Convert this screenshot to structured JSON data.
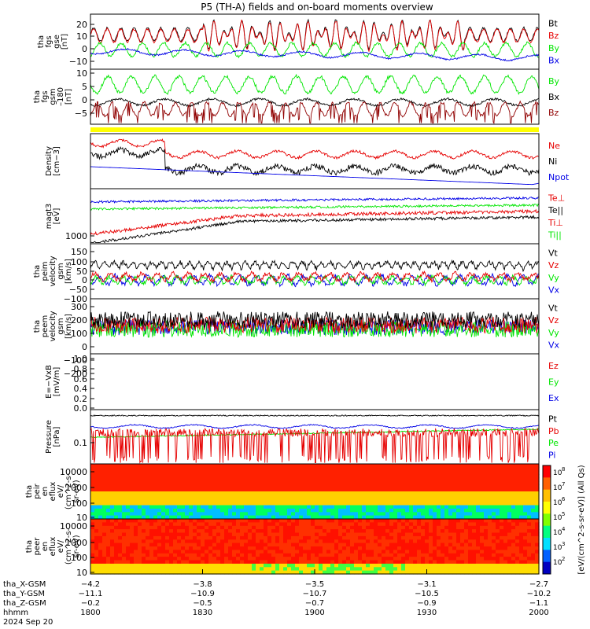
{
  "title": "P5 (TH-A) fields and on-board moments overview",
  "colors": {
    "black": "#000000",
    "red": "#e60000",
    "green": "#00e600",
    "blue": "#0000e6",
    "darkred": "#900000",
    "yellow": "#ffff00"
  },
  "chart_data": [
    {
      "type": "line",
      "id": "fgs_gse",
      "ylabel": [
        "tha",
        "fgs",
        "gse",
        "[nT]"
      ],
      "yticks": [
        "20",
        "10",
        "0",
        "−10"
      ],
      "ylim": [
        -14,
        28
      ],
      "legend": [
        {
          "name": "Bt",
          "color": "black"
        },
        {
          "name": "Bz",
          "color": "red"
        },
        {
          "name": "By",
          "color": "green"
        },
        {
          "name": "Bx",
          "color": "blue"
        }
      ]
    },
    {
      "type": "line",
      "id": "fgs_gsm",
      "ylabel": [
        "tha",
        "fgs",
        "gsm",
        "–180",
        "[nT]"
      ],
      "yticks": [
        "10",
        "5",
        "0",
        "−5"
      ],
      "ylim": [
        -9,
        12
      ],
      "legend": [
        {
          "name": "By",
          "color": "green"
        },
        {
          "name": "Bx",
          "color": "black"
        },
        {
          "name": "Bz",
          "color": "darkred"
        }
      ]
    },
    {
      "type": "line",
      "id": "density",
      "ylabel": [
        "Density",
        "[cm−3]"
      ],
      "yticks": [],
      "ylim": [
        0,
        1
      ],
      "legend": [
        {
          "name": "Ne",
          "color": "red"
        },
        {
          "name": "Ni",
          "color": "black"
        },
        {
          "name": "Npot",
          "color": "blue"
        }
      ]
    },
    {
      "type": "line",
      "id": "temperature",
      "ylabel": [
        "magt3",
        "[eV]"
      ],
      "yticks": [
        "1000"
      ],
      "ylim": [
        0,
        1
      ],
      "legend": [
        {
          "name": "Te⊥",
          "color": "red"
        },
        {
          "name": "Te||",
          "color": "black"
        },
        {
          "name": "Ti⊥",
          "color": "red"
        },
        {
          "name": "Ti||",
          "color": "green"
        }
      ]
    },
    {
      "type": "line",
      "id": "peim_velocity",
      "ylabel": [
        "tha",
        "peim",
        "velocity",
        "gsm",
        "[km/s]"
      ],
      "yticks": [
        "150",
        "100",
        "50",
        "0",
        "−50",
        "−100"
      ],
      "ylim": [
        -130,
        180
      ],
      "legend": [
        {
          "name": "Vt",
          "color": "black"
        },
        {
          "name": "Vz",
          "color": "red"
        },
        {
          "name": "Vy",
          "color": "green"
        },
        {
          "name": "Vx",
          "color": "blue"
        }
      ]
    },
    {
      "type": "line",
      "id": "peem_velocity",
      "ylabel": [
        "tha",
        "peem",
        "velocity",
        "gsm",
        "[km/s]"
      ],
      "yticks": [
        "300",
        "200",
        "100",
        "0",
        "−100",
        "−200"
      ],
      "ylim": [
        -270,
        340
      ],
      "legend": [
        {
          "name": "Vt",
          "color": "black"
        },
        {
          "name": "Vz",
          "color": "red"
        },
        {
          "name": "Vy",
          "color": "green"
        },
        {
          "name": "Vx",
          "color": "blue"
        }
      ]
    },
    {
      "type": "line",
      "id": "efield",
      "ylabel": [
        "E=−VxB",
        "[mV/m]"
      ],
      "yticks": [
        "1.0",
        "0.8",
        "0.6",
        "0.4",
        "0.2",
        "0.0"
      ],
      "ylim": [
        -0.05,
        1.0
      ],
      "legend": [
        {
          "name": "Ez",
          "color": "red"
        },
        {
          "name": "Ey",
          "color": "green"
        },
        {
          "name": "Ex",
          "color": "blue"
        }
      ]
    },
    {
      "type": "line",
      "id": "pressure",
      "ylabel": [
        "Pressure",
        "[nPa]"
      ],
      "yticks": [
        "0.1"
      ],
      "ylim": [
        0,
        1
      ],
      "legend": [
        {
          "name": "Pt",
          "color": "black"
        },
        {
          "name": "Pb",
          "color": "red"
        },
        {
          "name": "Pe",
          "color": "green"
        },
        {
          "name": "Pi",
          "color": "blue"
        }
      ]
    },
    {
      "type": "heatmap",
      "id": "peir_eflux",
      "ylabel": [
        "tha",
        "peir",
        "en",
        "eflux",
        "eV/",
        "(cm^2-s-",
        "sr-eV)"
      ],
      "yticks": [
        "10000",
        "1000",
        "100",
        "10"
      ]
    },
    {
      "type": "heatmap",
      "id": "peer_eflux",
      "ylabel": [
        "tha",
        "peer",
        "en",
        "eflux",
        "eV/",
        "(cm^2-s-",
        "sr-eV)"
      ],
      "yticks": [
        "10000",
        "1000",
        "100",
        "10"
      ]
    }
  ],
  "colorbar": {
    "labels": [
      "10",
      "10",
      "10",
      "10",
      "10",
      "10",
      "10"
    ],
    "exps": [
      "8",
      "7",
      "6",
      "5",
      "4",
      "3",
      "2"
    ],
    "title": "[eV/(cm^2-s-sr-eV)] (All Qs)"
  },
  "time_axis": {
    "rows": [
      {
        "label": "tha_X-GSM",
        "values": [
          "−4.2",
          "−3.8",
          "−3.5",
          "−3.1",
          "−2.7"
        ]
      },
      {
        "label": "tha_Y-GSM",
        "values": [
          "−11.1",
          "−10.9",
          "−10.7",
          "−10.5",
          "−10.2"
        ]
      },
      {
        "label": "tha_Z-GSM",
        "values": [
          "−0.2",
          "−0.5",
          "−0.7",
          "−0.9",
          "−1.1"
        ]
      },
      {
        "label": "hhmm",
        "values": [
          "1800",
          "1830",
          "1900",
          "1930",
          "2000"
        ]
      }
    ],
    "date": "2024 Sep 20"
  }
}
